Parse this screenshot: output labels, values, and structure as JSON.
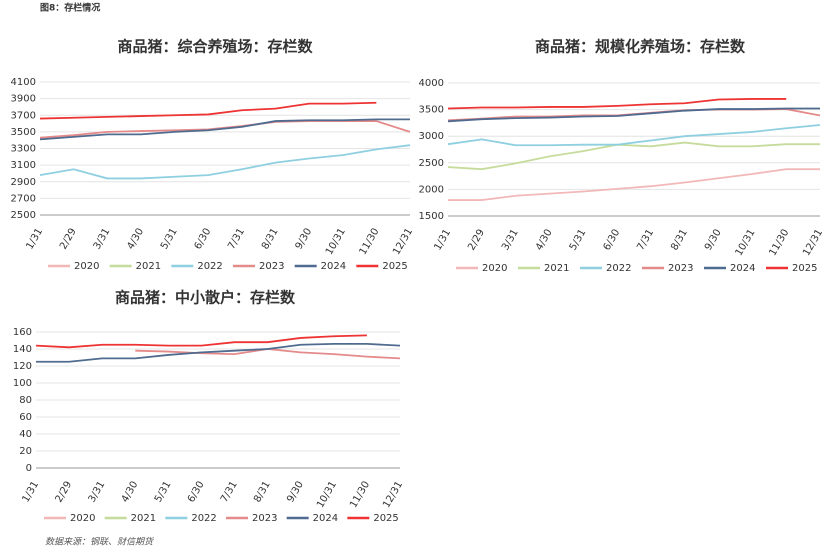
{
  "header": "图8：存栏情况",
  "source": "数据来源：钢联、财信期货",
  "chart_data": [
    {
      "type": "line",
      "title": "商品猪：综合养殖场：存栏数",
      "categories": [
        "1/31",
        "2/29",
        "3/31",
        "4/30",
        "5/31",
        "6/30",
        "7/31",
        "8/31",
        "9/30",
        "10/31",
        "11/30",
        "12/31"
      ],
      "ylim": [
        2500,
        4100
      ],
      "yticks": [
        2500,
        2700,
        2900,
        3100,
        3300,
        3500,
        3700,
        3900,
        4100
      ],
      "series": [
        {
          "name": "2020",
          "color": "#f2b8b8",
          "values": [
            null,
            null,
            null,
            null,
            null,
            null,
            null,
            null,
            null,
            null,
            null,
            null
          ]
        },
        {
          "name": "2021",
          "color": "#c6dc9c",
          "values": [
            null,
            null,
            null,
            null,
            null,
            null,
            null,
            null,
            null,
            null,
            null,
            null
          ]
        },
        {
          "name": "2022",
          "color": "#8ecfe0",
          "values": [
            2980,
            3050,
            2940,
            2940,
            2960,
            2980,
            3050,
            3130,
            3180,
            3220,
            3290,
            3340
          ]
        },
        {
          "name": "2023",
          "color": "#e58a8a",
          "values": [
            3430,
            3460,
            3500,
            3510,
            3520,
            3530,
            3570,
            3620,
            3630,
            3630,
            3630,
            3500
          ]
        },
        {
          "name": "2024",
          "color": "#4f6b8f",
          "values": [
            3410,
            3440,
            3470,
            3470,
            3500,
            3520,
            3560,
            3630,
            3640,
            3640,
            3650,
            3650
          ]
        },
        {
          "name": "2025",
          "color": "#ee3333",
          "values": [
            3660,
            3670,
            3680,
            3690,
            3700,
            3710,
            3760,
            3780,
            3840,
            3840,
            3850,
            null
          ]
        }
      ]
    },
    {
      "type": "line",
      "title": "商品猪：规模化养殖场：存栏数",
      "categories": [
        "1/31",
        "2/29",
        "3/31",
        "4/30",
        "5/31",
        "6/30",
        "7/31",
        "8/31",
        "9/30",
        "10/31",
        "11/30",
        "12/31"
      ],
      "ylim": [
        1500,
        4000
      ],
      "yticks": [
        1500,
        2000,
        2500,
        3000,
        3500,
        4000
      ],
      "series": [
        {
          "name": "2020",
          "color": "#f2b8b8",
          "values": [
            1800,
            1800,
            1880,
            1920,
            1960,
            2010,
            2060,
            2130,
            2210,
            2290,
            2380,
            2380
          ]
        },
        {
          "name": "2021",
          "color": "#c6dc9c",
          "values": [
            2420,
            2380,
            2490,
            2620,
            2720,
            2840,
            2810,
            2880,
            2810,
            2810,
            2850,
            2850
          ]
        },
        {
          "name": "2022",
          "color": "#8ecfe0",
          "values": [
            2850,
            2940,
            2830,
            2830,
            2840,
            2840,
            2920,
            3000,
            3040,
            3080,
            3150,
            3210
          ]
        },
        {
          "name": "2023",
          "color": "#e58a8a",
          "values": [
            3300,
            3330,
            3370,
            3370,
            3390,
            3390,
            3440,
            3490,
            3500,
            3500,
            3510,
            3390
          ]
        },
        {
          "name": "2024",
          "color": "#4f6b8f",
          "values": [
            3280,
            3320,
            3340,
            3350,
            3370,
            3380,
            3430,
            3480,
            3510,
            3510,
            3520,
            3520
          ]
        },
        {
          "name": "2025",
          "color": "#ee3333",
          "values": [
            3520,
            3540,
            3540,
            3550,
            3550,
            3570,
            3600,
            3620,
            3690,
            3700,
            3700,
            null
          ]
        }
      ]
    },
    {
      "type": "line",
      "title": "商品猪：中小散户：存栏数",
      "categories": [
        "1/31",
        "2/29",
        "3/31",
        "4/30",
        "5/31",
        "6/30",
        "7/31",
        "8/31",
        "9/30",
        "10/31",
        "11/30",
        "12/31"
      ],
      "ylim": [
        0,
        160
      ],
      "yticks": [
        0,
        20,
        40,
        60,
        80,
        100,
        120,
        140,
        160
      ],
      "series": [
        {
          "name": "2020",
          "color": "#f2b8b8",
          "values": [
            null,
            null,
            null,
            null,
            null,
            null,
            null,
            null,
            null,
            null,
            null,
            null
          ]
        },
        {
          "name": "2021",
          "color": "#c6dc9c",
          "values": [
            null,
            null,
            null,
            null,
            null,
            null,
            null,
            null,
            null,
            null,
            null,
            null
          ]
        },
        {
          "name": "2022",
          "color": "#8ecfe0",
          "values": [
            null,
            null,
            null,
            null,
            null,
            null,
            null,
            null,
            null,
            null,
            null,
            null
          ]
        },
        {
          "name": "2023",
          "color": "#e58a8a",
          "values": [
            null,
            null,
            null,
            138,
            137,
            135,
            134,
            140,
            136,
            134,
            131,
            129
          ]
        },
        {
          "name": "2024",
          "color": "#4f6b8f",
          "values": [
            125,
            125,
            129,
            129,
            133,
            136,
            138,
            140,
            145,
            146,
            146,
            144
          ]
        },
        {
          "name": "2025",
          "color": "#ee3333",
          "values": [
            144,
            142,
            145,
            145,
            144,
            144,
            148,
            148,
            153,
            155,
            156,
            null
          ]
        }
      ]
    }
  ]
}
